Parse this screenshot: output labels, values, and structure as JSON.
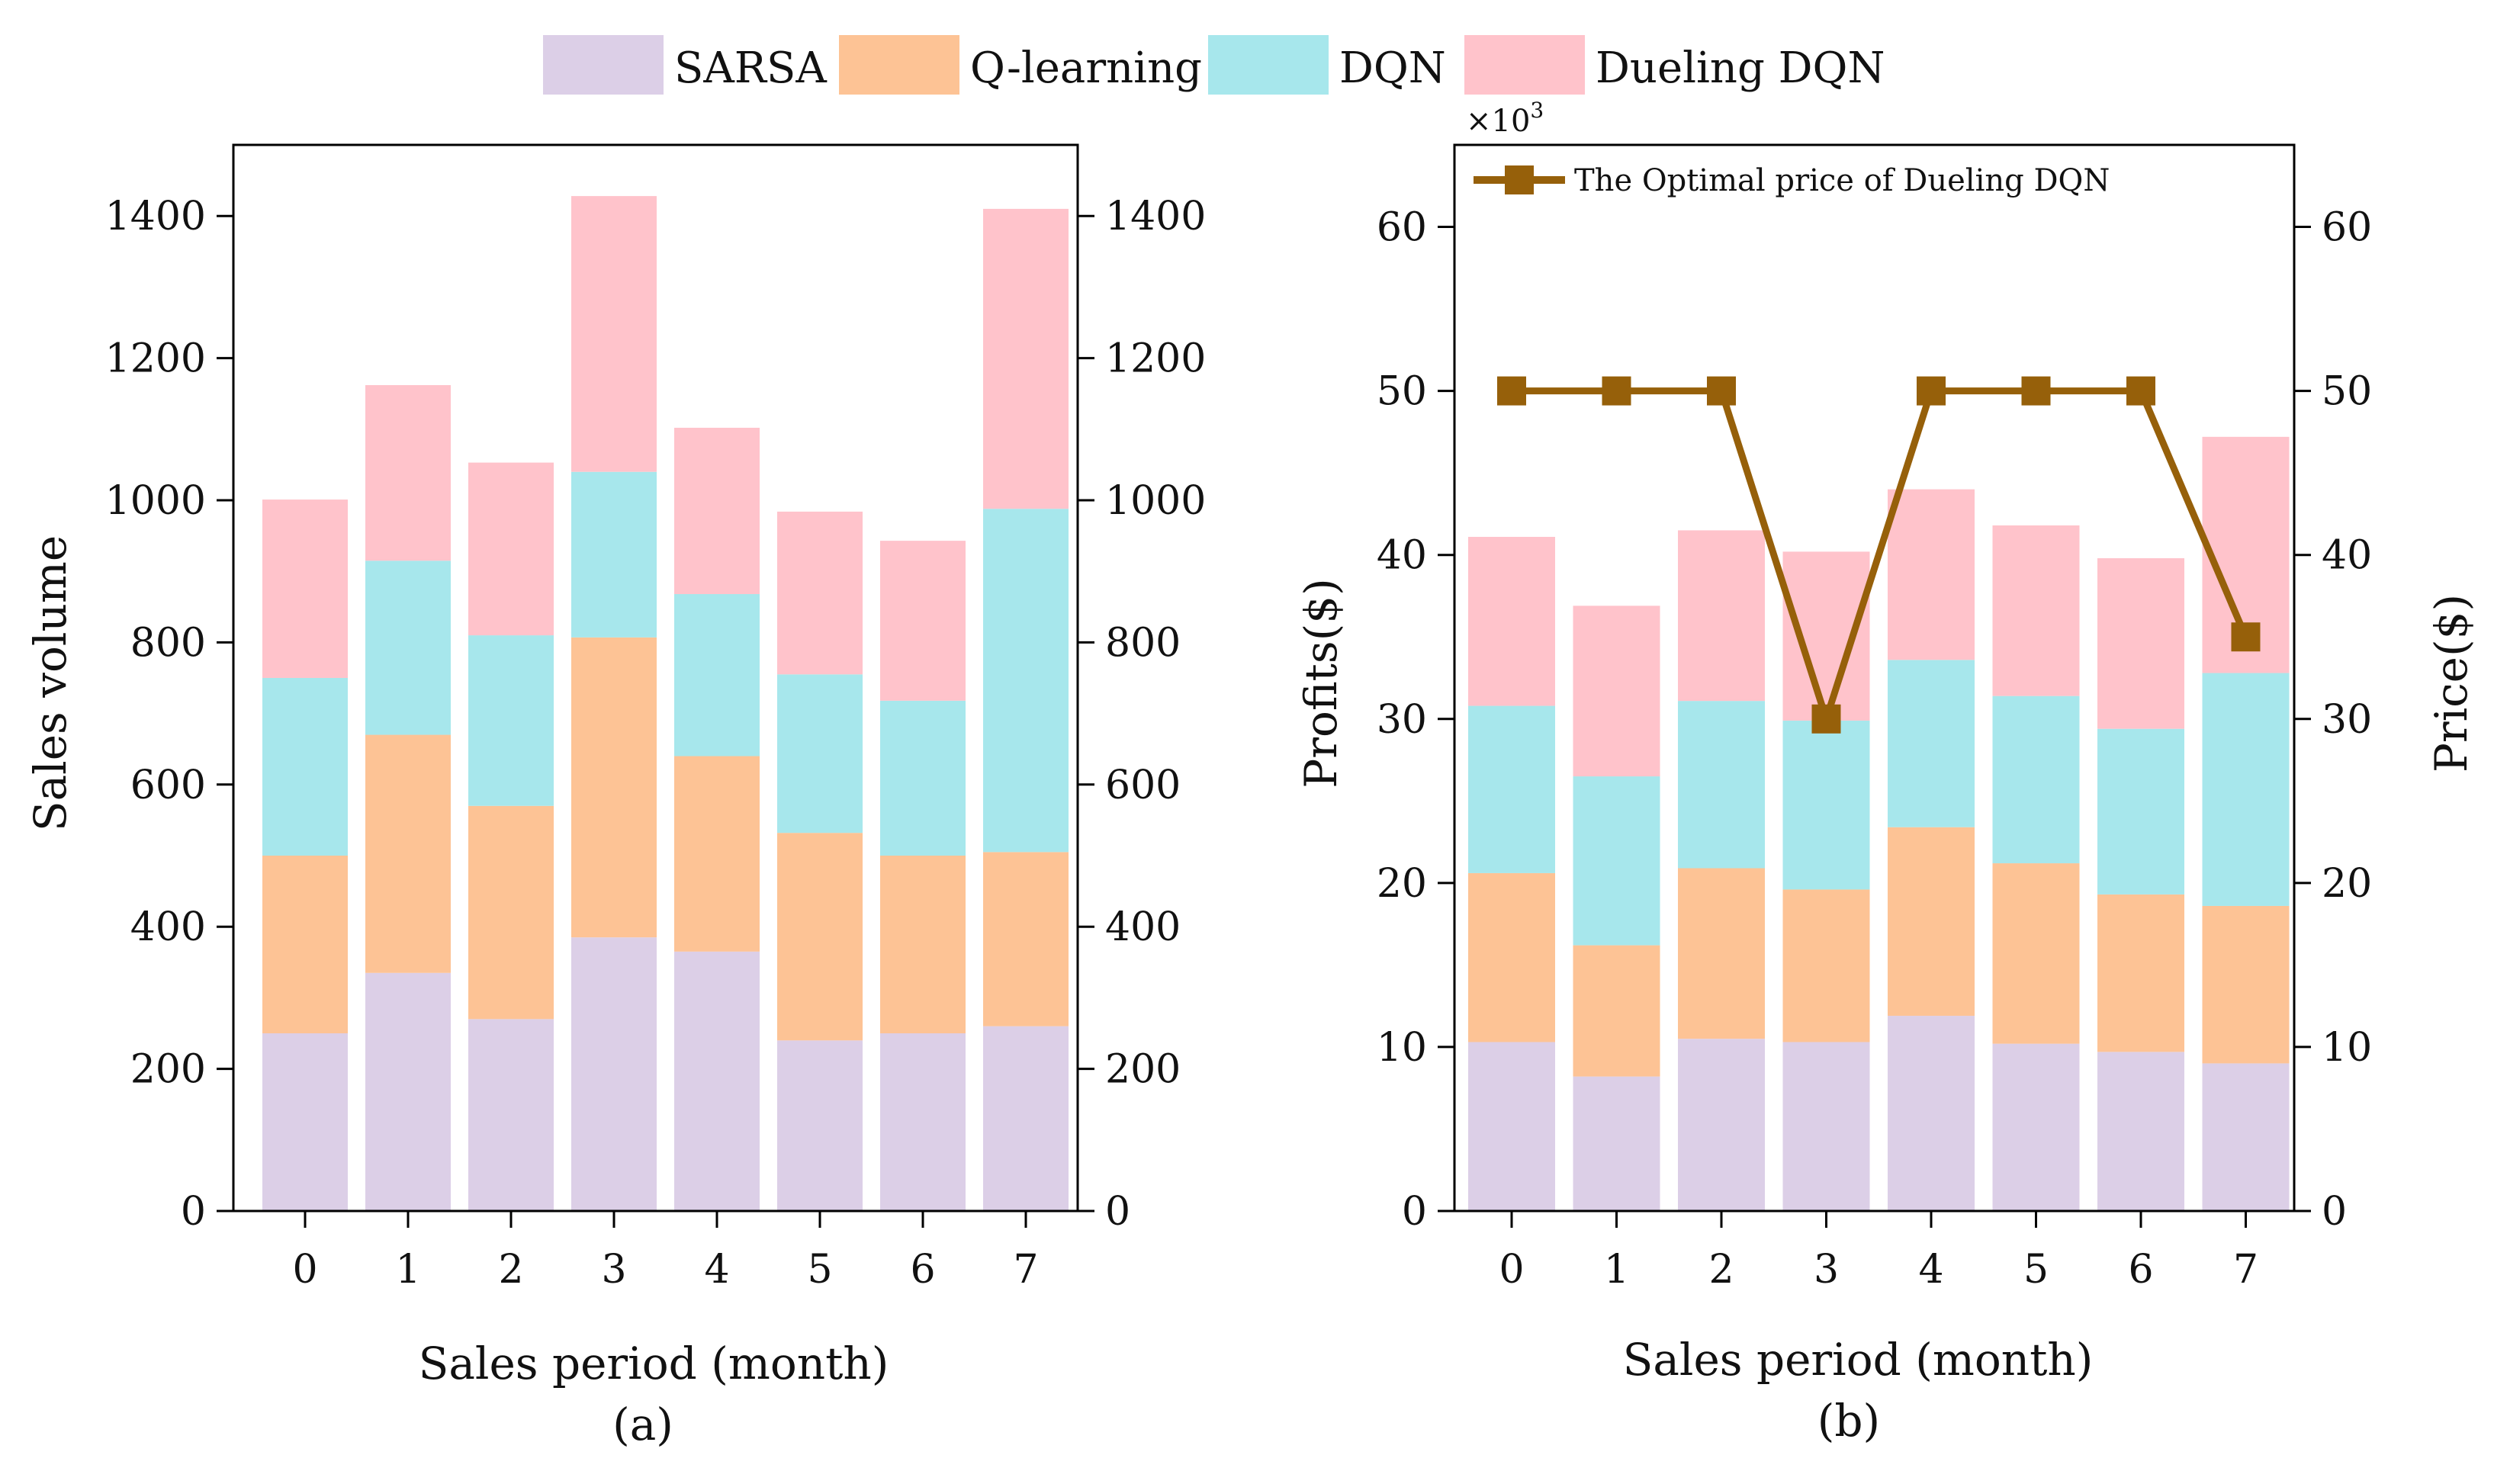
{
  "legend": [
    {
      "name": "SARSA",
      "color": "#dccfe7"
    },
    {
      "name": "Q-learning",
      "color": "#fdc395"
    },
    {
      "name": "DQN",
      "color": "#a7e7ec"
    },
    {
      "name": "Dueling DQN",
      "color": "#ffc3cb"
    }
  ],
  "chart_data": [
    {
      "type": "bar",
      "stacked": true,
      "sub_label": "(a)",
      "xlabel": "Sales period (month)",
      "ylabel": "Sales volume",
      "categories": [
        "0",
        "1",
        "2",
        "3",
        "4",
        "5",
        "6",
        "7"
      ],
      "ylim": [
        0,
        1500
      ],
      "yticks": [
        0,
        200,
        400,
        600,
        800,
        1000,
        1200,
        1400
      ],
      "ytick_labels": [
        "0",
        "200",
        "400",
        "600",
        "800",
        "1000",
        "1200",
        "1400"
      ],
      "series": [
        {
          "name": "SARSA",
          "color": "#dccfe7",
          "values": [
            250,
            335,
            270,
            385,
            365,
            240,
            250,
            260
          ]
        },
        {
          "name": "Q-learning",
          "color": "#fdc395",
          "values": [
            250,
            335,
            300,
            422,
            275,
            292,
            250,
            245
          ]
        },
        {
          "name": "DQN",
          "color": "#a7e7ec",
          "values": [
            250,
            245,
            240,
            233,
            228,
            223,
            218,
            483
          ]
        },
        {
          "name": "Dueling DQN",
          "color": "#ffc3cb",
          "values": [
            251,
            247,
            243,
            388,
            234,
            229,
            225,
            422
          ]
        }
      ]
    },
    {
      "type": "bar",
      "stacked": true,
      "sub_label": "(b)",
      "xlabel": "Sales period (month)",
      "ylabel": "Profits($)",
      "y2label": "Price($)",
      "multiplier_label": "×10",
      "multiplier_exp": "3",
      "categories": [
        "0",
        "1",
        "2",
        "3",
        "4",
        "5",
        "6",
        "7"
      ],
      "ylim": [
        0,
        65
      ],
      "yticks": [
        0,
        10,
        20,
        30,
        40,
        50,
        60
      ],
      "ytick_labels": [
        "0",
        "10",
        "20",
        "30",
        "40",
        "50",
        "60"
      ],
      "y2ticks": [
        0,
        10,
        20,
        30,
        40,
        50,
        60
      ],
      "y2tick_labels": [
        "0",
        "10",
        "20",
        "30",
        "40",
        "50",
        "60"
      ],
      "series": [
        {
          "name": "SARSA",
          "color": "#dccfe7",
          "values": [
            10.3,
            8.2,
            10.5,
            10.3,
            11.9,
            10.2,
            9.7,
            9.0
          ]
        },
        {
          "name": "Q-learning",
          "color": "#fdc395",
          "values": [
            10.3,
            8.0,
            10.4,
            9.3,
            11.5,
            11.0,
            9.6,
            9.6
          ]
        },
        {
          "name": "DQN",
          "color": "#a7e7ec",
          "values": [
            10.2,
            10.3,
            10.2,
            10.3,
            10.2,
            10.2,
            10.1,
            14.2
          ]
        },
        {
          "name": "Dueling DQN",
          "color": "#ffc3cb",
          "values": [
            10.3,
            10.4,
            10.4,
            10.3,
            10.4,
            10.4,
            10.4,
            14.4
          ]
        }
      ],
      "line": {
        "name": "The Optimal price of Dueling DQN",
        "color": "#96600a",
        "values": [
          50,
          50,
          50,
          30,
          50,
          50,
          50,
          35
        ]
      }
    }
  ]
}
